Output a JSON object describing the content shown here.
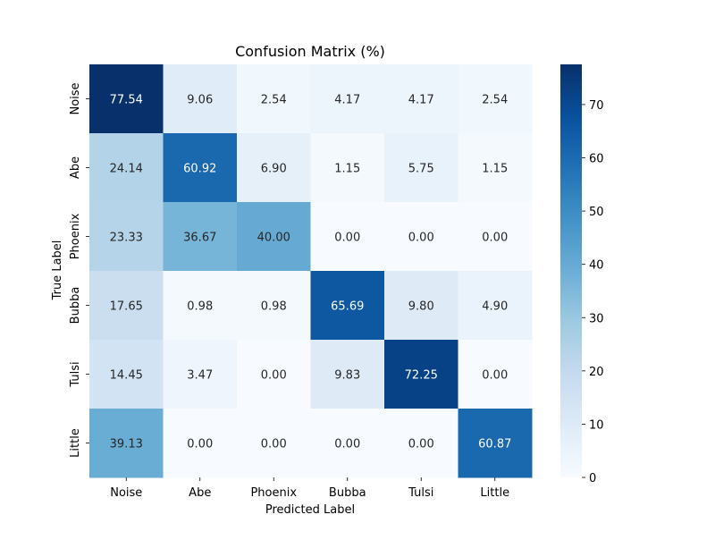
{
  "chart_data": {
    "type": "heatmap",
    "title": "Confusion Matrix (%)",
    "xlabel": "Predicted Label",
    "ylabel": "True Label",
    "x_categories": [
      "Noise",
      "Abe",
      "Phoenix",
      "Bubba",
      "Tulsi",
      "Little"
    ],
    "y_categories": [
      "Noise",
      "Abe",
      "Phoenix",
      "Bubba",
      "Tulsi",
      "Little"
    ],
    "values": [
      [
        77.54,
        9.06,
        2.54,
        4.17,
        4.17,
        2.54
      ],
      [
        24.14,
        60.92,
        6.9,
        1.15,
        5.75,
        1.15
      ],
      [
        23.33,
        36.67,
        40.0,
        0.0,
        0.0,
        0.0
      ],
      [
        17.65,
        0.98,
        0.98,
        65.69,
        9.8,
        4.9
      ],
      [
        14.45,
        3.47,
        0.0,
        9.83,
        72.25,
        0.0
      ],
      [
        39.13,
        0.0,
        0.0,
        0.0,
        0.0,
        60.87
      ]
    ],
    "value_format": "2 decimals",
    "colormap": "Blues",
    "colorbar": {
      "min": 0,
      "max": 77.54,
      "ticks": [
        0,
        10,
        20,
        30,
        40,
        50,
        60,
        70
      ]
    }
  }
}
